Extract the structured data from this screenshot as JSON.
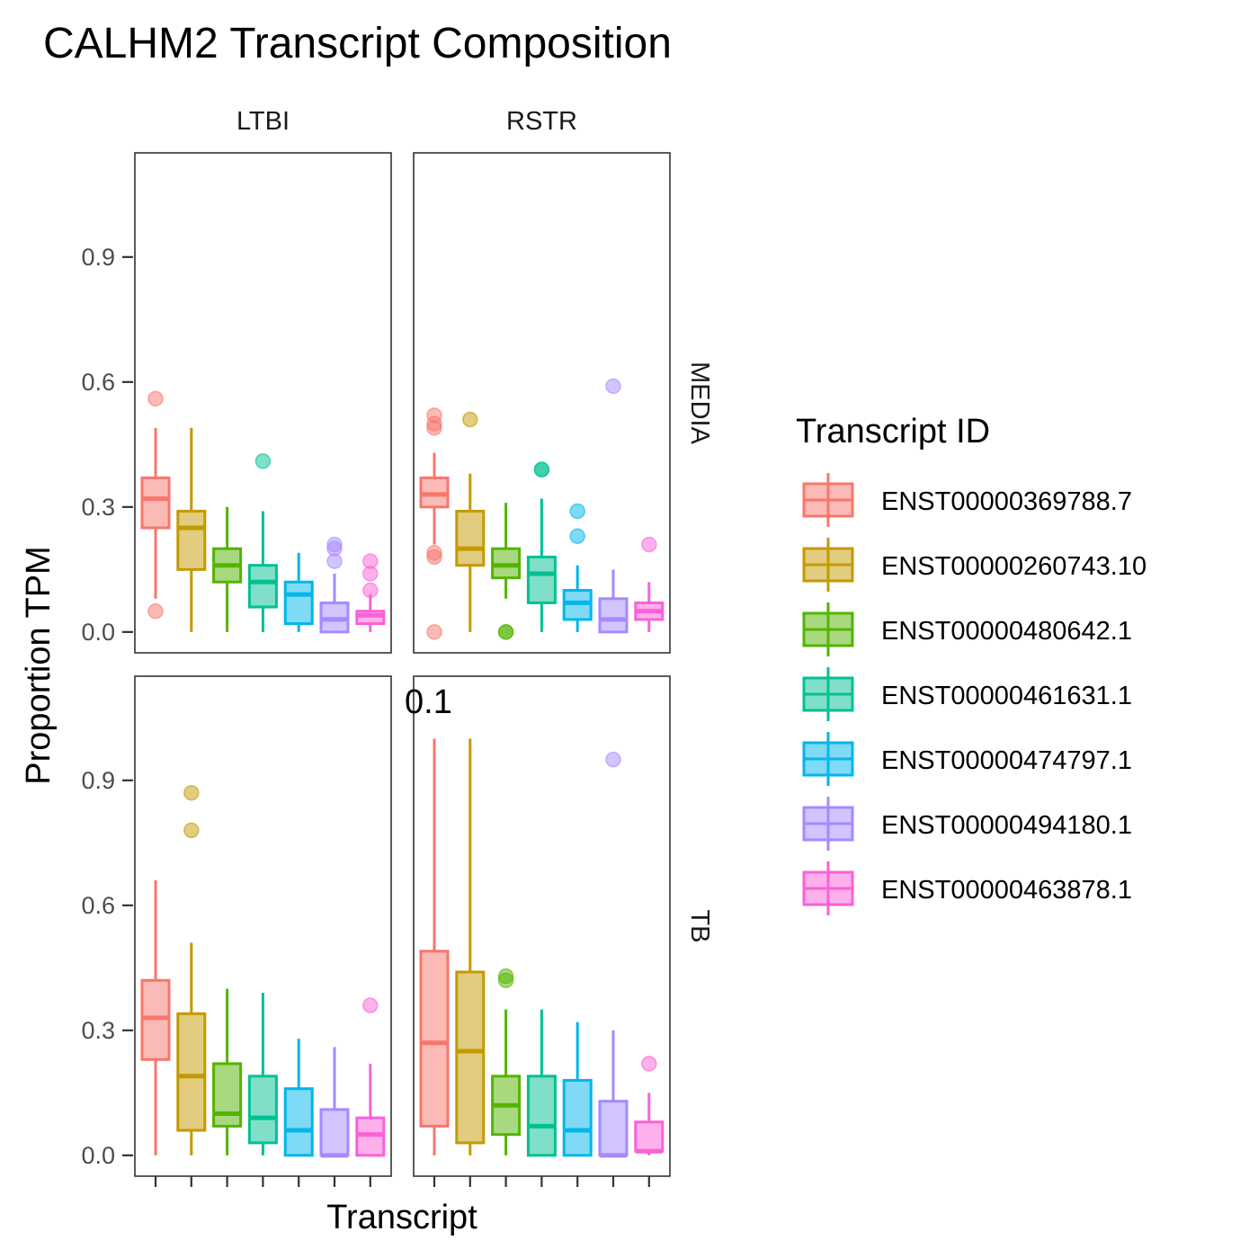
{
  "chart_data": {
    "type": "box",
    "title": "CALHM2 Transcript Composition",
    "xlabel": "Transcript",
    "ylabel": "Proportion TPM",
    "y_ticks": [
      "0.0",
      "0.3",
      "0.6",
      "0.9"
    ],
    "ylim": [
      -0.05,
      1.15
    ],
    "columns": [
      "LTBI",
      "RSTR"
    ],
    "rows": [
      "MEDIA",
      "TB"
    ],
    "annotation": "0.1",
    "legend": {
      "title": "Transcript ID",
      "position": "right",
      "items": [
        {
          "label": "ENST00000369788.7",
          "color": "#F8766D"
        },
        {
          "label": "ENST00000260743.10",
          "color": "#C49A00"
        },
        {
          "label": "ENST00000480642.1",
          "color": "#53B400"
        },
        {
          "label": "ENST00000461631.1",
          "color": "#00C094"
        },
        {
          "label": "ENST00000474797.1",
          "color": "#00B6EB"
        },
        {
          "label": "ENST00000494180.1",
          "color": "#A58AFF"
        },
        {
          "label": "ENST00000463878.1",
          "color": "#FB61D7"
        }
      ]
    },
    "panels": [
      {
        "column": "LTBI",
        "row": "MEDIA",
        "boxes": [
          {
            "q1": 0.25,
            "median": 0.32,
            "q3": 0.37,
            "lo": 0.08,
            "hi": 0.49,
            "outliers": [
              0.56,
              0.05
            ]
          },
          {
            "q1": 0.15,
            "median": 0.25,
            "q3": 0.29,
            "lo": 0.0,
            "hi": 0.49,
            "outliers": []
          },
          {
            "q1": 0.12,
            "median": 0.16,
            "q3": 0.2,
            "lo": 0.0,
            "hi": 0.3,
            "outliers": []
          },
          {
            "q1": 0.06,
            "median": 0.12,
            "q3": 0.16,
            "lo": 0.0,
            "hi": 0.29,
            "outliers": [
              0.41
            ]
          },
          {
            "q1": 0.02,
            "median": 0.09,
            "q3": 0.12,
            "lo": 0.0,
            "hi": 0.19,
            "outliers": []
          },
          {
            "q1": 0.0,
            "median": 0.03,
            "q3": 0.07,
            "lo": 0.0,
            "hi": 0.14,
            "outliers": [
              0.17,
              0.2,
              0.21
            ]
          },
          {
            "q1": 0.02,
            "median": 0.04,
            "q3": 0.05,
            "lo": 0.0,
            "hi": 0.09,
            "outliers": [
              0.1,
              0.14,
              0.17
            ]
          }
        ]
      },
      {
        "column": "RSTR",
        "row": "MEDIA",
        "boxes": [
          {
            "q1": 0.3,
            "median": 0.33,
            "q3": 0.37,
            "lo": 0.21,
            "hi": 0.43,
            "outliers": [
              0.52,
              0.5,
              0.49,
              0.19,
              0.18,
              0.0
            ]
          },
          {
            "q1": 0.16,
            "median": 0.2,
            "q3": 0.29,
            "lo": 0.0,
            "hi": 0.38,
            "outliers": [
              0.51
            ]
          },
          {
            "q1": 0.13,
            "median": 0.16,
            "q3": 0.2,
            "lo": 0.08,
            "hi": 0.31,
            "outliers": [
              0.0,
              0.0
            ]
          },
          {
            "q1": 0.07,
            "median": 0.14,
            "q3": 0.18,
            "lo": 0.0,
            "hi": 0.32,
            "outliers": [
              0.39,
              0.39
            ]
          },
          {
            "q1": 0.03,
            "median": 0.07,
            "q3": 0.1,
            "lo": 0.0,
            "hi": 0.16,
            "outliers": [
              0.29,
              0.23
            ]
          },
          {
            "q1": 0.0,
            "median": 0.03,
            "q3": 0.08,
            "lo": 0.0,
            "hi": 0.15,
            "outliers": [
              0.59
            ]
          },
          {
            "q1": 0.03,
            "median": 0.05,
            "q3": 0.07,
            "lo": 0.0,
            "hi": 0.12,
            "outliers": [
              0.21
            ]
          }
        ]
      },
      {
        "column": "LTBI",
        "row": "TB",
        "boxes": [
          {
            "q1": 0.23,
            "median": 0.33,
            "q3": 0.42,
            "lo": 0.0,
            "hi": 0.66,
            "outliers": []
          },
          {
            "q1": 0.06,
            "median": 0.19,
            "q3": 0.34,
            "lo": 0.0,
            "hi": 0.51,
            "outliers": [
              0.87,
              0.78
            ]
          },
          {
            "q1": 0.07,
            "median": 0.1,
            "q3": 0.22,
            "lo": 0.0,
            "hi": 0.4,
            "outliers": []
          },
          {
            "q1": 0.03,
            "median": 0.09,
            "q3": 0.19,
            "lo": 0.0,
            "hi": 0.39,
            "outliers": []
          },
          {
            "q1": 0.0,
            "median": 0.06,
            "q3": 0.16,
            "lo": 0.0,
            "hi": 0.28,
            "outliers": []
          },
          {
            "q1": 0.0,
            "median": 0.0,
            "q3": 0.11,
            "lo": 0.0,
            "hi": 0.26,
            "outliers": []
          },
          {
            "q1": 0.0,
            "median": 0.05,
            "q3": 0.09,
            "lo": 0.0,
            "hi": 0.22,
            "outliers": [
              0.36
            ]
          }
        ]
      },
      {
        "column": "RSTR",
        "row": "TB",
        "boxes": [
          {
            "q1": 0.07,
            "median": 0.27,
            "q3": 0.49,
            "lo": 0.0,
            "hi": 1.0,
            "outliers": []
          },
          {
            "q1": 0.03,
            "median": 0.25,
            "q3": 0.44,
            "lo": 0.0,
            "hi": 1.0,
            "outliers": []
          },
          {
            "q1": 0.05,
            "median": 0.12,
            "q3": 0.19,
            "lo": 0.0,
            "hi": 0.35,
            "outliers": [
              0.43,
              0.42
            ]
          },
          {
            "q1": 0.0,
            "median": 0.07,
            "q3": 0.19,
            "lo": 0.0,
            "hi": 0.35,
            "outliers": []
          },
          {
            "q1": 0.0,
            "median": 0.06,
            "q3": 0.18,
            "lo": 0.0,
            "hi": 0.32,
            "outliers": []
          },
          {
            "q1": 0.0,
            "median": 0.0,
            "q3": 0.13,
            "lo": 0.0,
            "hi": 0.3,
            "outliers": [
              0.95
            ]
          },
          {
            "q1": 0.01,
            "median": 0.01,
            "q3": 0.08,
            "lo": 0.0,
            "hi": 0.15,
            "outliers": [
              0.22
            ]
          }
        ]
      }
    ]
  }
}
